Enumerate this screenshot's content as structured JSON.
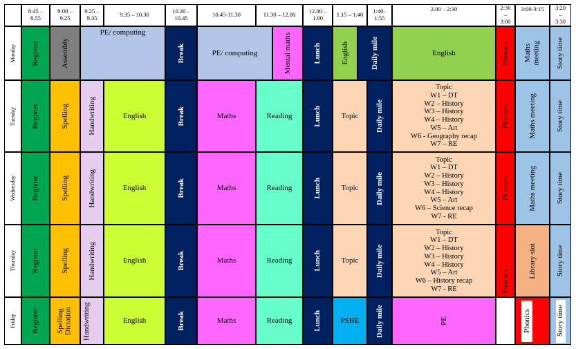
{
  "colors": {
    "green": "#00A651",
    "yellow": "#FFC000",
    "lilac": "#E6CCEE",
    "lime": "#CCFF33",
    "navy": "#002060",
    "magenta": "#FF66FF",
    "aqua": "#66FFCC",
    "peach": "#FCD5B4",
    "red": "#FF0000",
    "blue": "#9DC3E6",
    "grey": "#7F7F7F",
    "lightblue": "#B4C6E7",
    "leaf": "#92D050",
    "cyan": "#00B0F0",
    "salmon": "#F4B183",
    "white": "#FFFFFF"
  },
  "headers": [
    "8.45 –\n8.55",
    "9:00 –\n9.25",
    "9.25 –\n9.35",
    "9.35 – 10.30",
    "10.30 –\n10.45",
    "10.45-11.30",
    "11.30 – 12.00",
    "12.00 –\n1.00",
    "1.15 – 1:40",
    "1:40–\n1:55",
    "2.00 – 2:30",
    "2:30\n–\n3:00",
    "3:00-3:15",
    "3:20\n–\n3:30"
  ],
  "days": [
    "Monday",
    "Tuesday",
    "Wednesday",
    "Thursday",
    "Friday"
  ],
  "cells": {
    "mon_register": "Register",
    "mon_assembly": "Assembly",
    "mon_pe1": "PE/ computing",
    "mon_break": "Break",
    "mon_pe2": "PE/ computing",
    "mon_mental": "Mental maths",
    "mon_lunch": "Lunch",
    "mon_english_a": "English",
    "mon_dailymile": "Daily mile",
    "mon_english_b": "English",
    "mon_phonics": "Phonics",
    "mon_maths_meeting": "Maths\nmeeting",
    "mon_story": "Story time",
    "tue_register": "Register",
    "tue_spelling": "Spelling",
    "tue_handwriting": "Handwriting",
    "tue_english": "English",
    "tue_break": "Break",
    "tue_maths": "Maths",
    "tue_reading": "Reading",
    "tue_lunch": "Lunch",
    "tue_topic_short": "Topic",
    "tue_dailymile": "Daily mile",
    "tue_topic_long": "Topic\nW1 – DT\nW2 – History\nW3 – History\nW4 – History\nW5 – Art\nW6 -  Geography recap\nW7 – RE",
    "tue_phonics": "Phonics",
    "tue_maths_meeting": "Maths meeting",
    "tue_story": "Story time",
    "wed_register": "Register",
    "wed_spelling": "Spelling",
    "wed_handwriting": "Handwriting",
    "wed_english": "English",
    "wed_break": "Break",
    "wed_maths": "Maths",
    "wed_reading": "Reading",
    "wed_lunch": "Lunch",
    "wed_topic_short": "Topic",
    "wed_dailymile": "Daily mile",
    "wed_topic_long": "Topic\nW1 – DT\nW2 – History\nW3 – History\nW4 – History\nW5 – Art\nW6 – Science recap\nW7 - RE",
    "wed_phonics": "Phonics",
    "wed_maths_meeting": "Maths meeting",
    "wed_story": "Story time",
    "thu_register": "Register",
    "thu_spelling": "Spelling",
    "thu_handwriting": "Handwriting",
    "thu_english": "English",
    "thu_break": "Break",
    "thu_maths": "Maths",
    "thu_reading": "Reading",
    "thu_lunch": "Lunch",
    "thu_topic_short": "Topic",
    "thu_dailymile": "Daily mile",
    "thu_topic_long": "Topic\nW1 – DT\nW2 – History\nW3 – History\nW4 – History\nW5 – Art\nW6 – History recap\nW7 - RE",
    "thu_phonics": "Phonics",
    "thu_library": "Library slot",
    "thu_story": "Story time",
    "fri_register": "Register",
    "fri_spelling": "Spelling\nDictation",
    "fri_handwriting": "Handwriting",
    "fri_english": "English",
    "fri_break": "Break",
    "fri_maths": "Maths",
    "fri_reading": "Reading",
    "fri_lunch": "Lunch",
    "fri_pshe": "PSHE",
    "fri_dailymile": "Daily mile",
    "fri_pe": "PE",
    "fri_phonics": "Phonics",
    "fri_story": "Story time"
  }
}
